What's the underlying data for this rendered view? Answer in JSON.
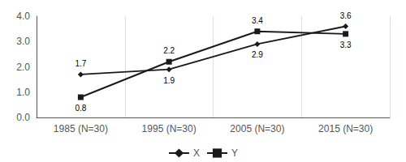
{
  "chart_data": {
    "type": "line",
    "categories": [
      "1985 (N=30)",
      "1995 (N=30)",
      "2005 (N=30)",
      "2015 (N=30)"
    ],
    "series": [
      {
        "name": "X",
        "color": "#1a1a1a",
        "marker": "diamond",
        "values": [
          1.7,
          1.9,
          2.9,
          3.6
        ]
      },
      {
        "name": "Y",
        "color": "#1a1a1a",
        "marker": "square",
        "values": [
          0.8,
          2.2,
          3.4,
          3.3
        ]
      }
    ],
    "ylim": [
      0.0,
      4.0
    ],
    "yticks": [
      {
        "value": 0.0,
        "label": "0.0"
      },
      {
        "value": 1.0,
        "label": "1.0"
      },
      {
        "value": 2.0,
        "label": "2.0"
      },
      {
        "value": 3.0,
        "label": "3.0"
      },
      {
        "value": 4.0,
        "label": "4.0"
      }
    ],
    "grid": true,
    "legend": "bottom",
    "data_labels": true
  }
}
